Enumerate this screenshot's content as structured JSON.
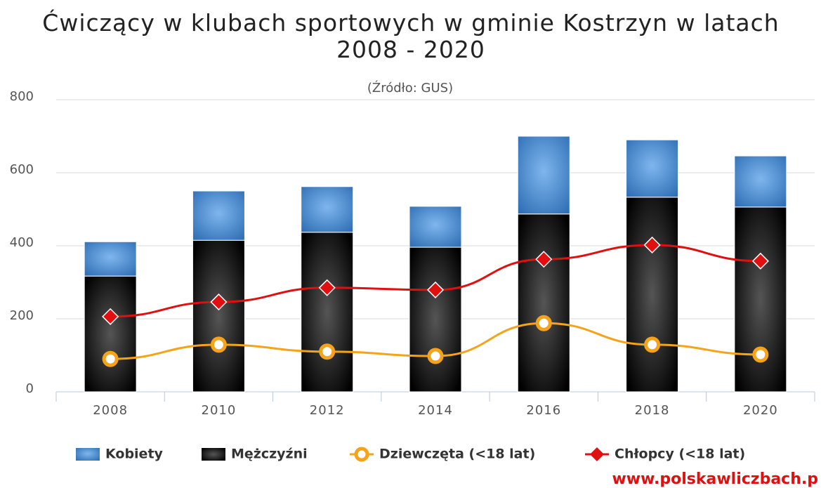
{
  "chart_data": {
    "type": "bar",
    "title": "Ćwiczący w klubach sportowych w gminie Kostrzyn w latach 2008 - 2020",
    "subtitle": "(Źródło: GUS)",
    "credit": "www.polskawliczbach.p",
    "categories": [
      "2008",
      "2010",
      "2012",
      "2014",
      "2016",
      "2018",
      "2020"
    ],
    "ylim": [
      0,
      800
    ],
    "yticks": [
      0,
      200,
      400,
      600,
      800
    ],
    "grid": true,
    "stacked": true,
    "legend": "bottom",
    "series": [
      {
        "name": "Kobiety",
        "type": "bar",
        "color": "#4a8fd6",
        "values": [
          94,
          135,
          125,
          112,
          213,
          157,
          140
        ]
      },
      {
        "name": "Mężczyźni",
        "type": "bar",
        "color": "#111111",
        "values": [
          317,
          415,
          437,
          396,
          487,
          533,
          506
        ]
      },
      {
        "name": "Dziewczęta (<18 lat)",
        "type": "line",
        "color": "#f5a31a",
        "marker": "circle",
        "values": [
          90,
          129,
          110,
          98,
          188,
          129,
          102
        ]
      },
      {
        "name": "Chłopcy (<18 lat)",
        "type": "line",
        "color": "#e01010",
        "marker": "diamond",
        "values": [
          206,
          246,
          285,
          279,
          363,
          402,
          358
        ]
      }
    ]
  }
}
